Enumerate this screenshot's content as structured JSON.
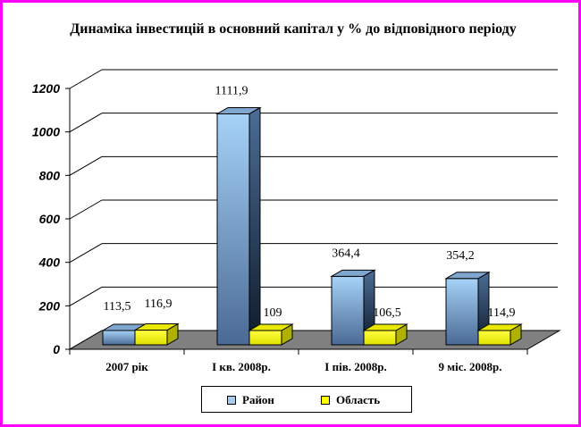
{
  "chart_data": {
    "type": "bar",
    "title": "Динаміка інвестицій в основний капітал у % до відповідного періоду",
    "categories": [
      "2007 рік",
      "І кв. 2008р.",
      "І пів. 2008р.",
      "9 міс. 2008р."
    ],
    "series": [
      {
        "name": "Район",
        "values": [
          113.5,
          1111.9,
          364.4,
          354.2
        ],
        "labels": [
          "113,5",
          "1111,9",
          "364,4",
          "354,2"
        ],
        "color": "#a6caf0"
      },
      {
        "name": "Область",
        "values": [
          116.9,
          109,
          106.5,
          114.9
        ],
        "labels": [
          "116,9",
          "109",
          "106,5",
          "114,9"
        ],
        "color": "#ffff00"
      }
    ],
    "yticks": [
      "0",
      "200",
      "400",
      "600",
      "800",
      "1000",
      "1200"
    ],
    "ylim": [
      0,
      1200
    ],
    "grid": true,
    "legend": "bottom",
    "floor_color": "#808080",
    "frame_color": "#ff00ff"
  }
}
